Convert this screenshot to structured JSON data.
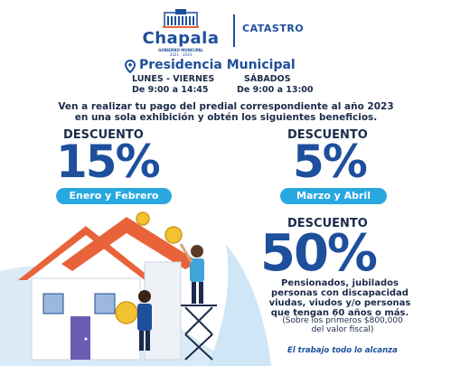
{
  "colors": {
    "brand_blue": "#1e4f9c",
    "accent_light_blue": "#29a8e0",
    "text_dark": "#1c2b4a",
    "coin_gold": "#f2c230",
    "roof_orange": "#e8633a"
  },
  "header": {
    "logo_name": "Chapala",
    "logo_subtitle": "GOBIERNO MUNICIPAL",
    "logo_years": "2021 - 2024",
    "department": "CATASTRO"
  },
  "location": {
    "icon": "location-pin-icon",
    "title": "Presidencia Municipal",
    "weekday_label": "LUNES - VIERNES",
    "weekday_hours": "De 9:00 a 14:45",
    "saturday_label": "SÁBADOS",
    "saturday_hours": "De 9:00 a 13:00"
  },
  "intro": {
    "line1": "Ven a realizar tu pago del predial correspondiente al año 2023",
    "line2": "en una sola exhibición y obtén los siguientes beneficios."
  },
  "discounts": [
    {
      "label": "DESCUENTO",
      "percent": "15%",
      "period": "Enero y Febrero"
    },
    {
      "label": "DESCUENTO",
      "percent": "5%",
      "period": "Marzo y Abril"
    },
    {
      "label": "DESCUENTO",
      "percent": "50%",
      "beneficiaries": [
        "Pensionados, jubilados",
        "personas con discapacidad",
        "viudas, viudos y/o personas",
        "que tengan 60 años o más."
      ],
      "note": [
        "(Sobre los primeros $800,000",
        "del valor fiscal)"
      ]
    }
  ],
  "slogan": "El trabajo todo lo alcanza"
}
